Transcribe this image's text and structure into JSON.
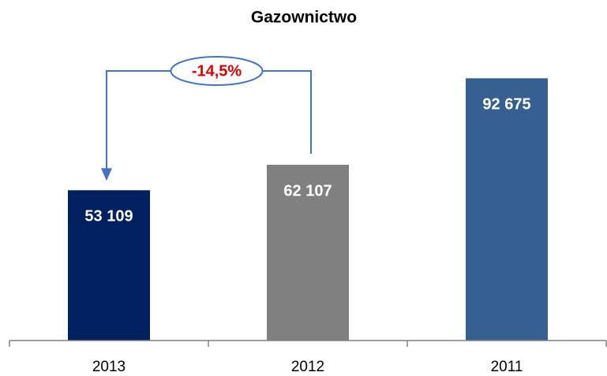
{
  "chart_data": {
    "type": "bar",
    "title": "Gazownictwo",
    "categories": [
      "2013",
      "2012",
      "2011"
    ],
    "values": [
      53109,
      62107,
      92675
    ],
    "value_labels": [
      "53 109",
      "62 107",
      "92 675"
    ],
    "colors": [
      "#002060",
      "#808080",
      "#376092"
    ],
    "ylim": [
      0,
      100000
    ],
    "annotation": "-14,5%"
  }
}
